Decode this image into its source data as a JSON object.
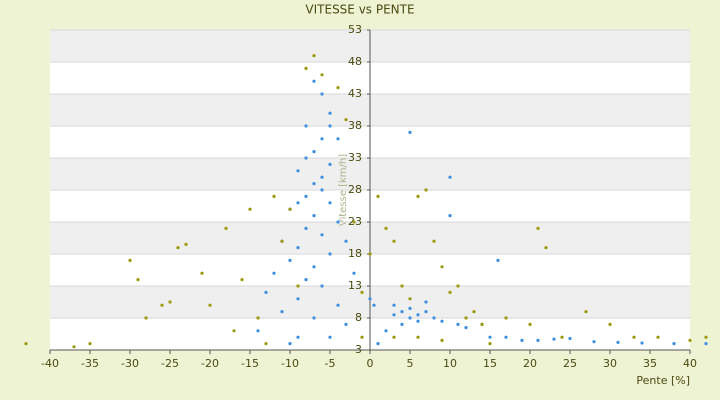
{
  "chart_data": {
    "type": "scatter",
    "title": "VITESSE vs PENTE",
    "x_label": "Pente [%]",
    "y_label": "Vitesse [km/h]",
    "xlim": [
      -40,
      40
    ],
    "xticks": [
      -40,
      -35,
      -30,
      -25,
      -20,
      -15,
      -10,
      -5,
      0,
      5,
      10,
      15,
      20,
      25,
      30,
      35,
      40
    ],
    "ylim": [
      3,
      53
    ],
    "yticks": [
      3,
      8,
      13,
      18,
      23,
      28,
      33,
      38,
      43,
      48,
      53
    ],
    "grid": true,
    "series": [
      {
        "color": "#3d8fe0",
        "x": [
          -7,
          -6,
          -5,
          -5,
          -6,
          -7,
          -8,
          -5,
          -6,
          -7,
          -6,
          -8,
          -9,
          -5,
          -10,
          -7,
          -4,
          -8,
          -6,
          -11,
          -9,
          -5,
          -10,
          -7,
          -12,
          -8,
          -6,
          -13,
          -9,
          -4,
          -11,
          -7,
          -3,
          -14,
          -9,
          -5,
          -10,
          -2,
          -3,
          -4,
          -8,
          -9,
          5,
          10,
          10,
          3,
          4,
          5,
          6,
          7,
          8,
          5,
          6,
          4,
          9,
          3,
          7,
          11,
          12,
          14,
          16,
          15,
          17,
          19,
          21,
          23,
          25,
          28,
          31,
          34,
          38,
          42,
          2,
          1,
          0.5,
          0
        ],
        "values": [
          45,
          43,
          40,
          38,
          36,
          34,
          33,
          32,
          30,
          29,
          28,
          27,
          26,
          26,
          25,
          24,
          23,
          22,
          21,
          20,
          19,
          18,
          17,
          16,
          15,
          14,
          13,
          12,
          11,
          10,
          9,
          8,
          7,
          6,
          5,
          5,
          4,
          15,
          20,
          36,
          38,
          31,
          37,
          30,
          24,
          10,
          9,
          9.5,
          8.5,
          9,
          8,
          8,
          7.5,
          7,
          7.5,
          8.5,
          10.5,
          7,
          6.5,
          7,
          17,
          5,
          5,
          4.5,
          4.5,
          4.7,
          4.8,
          4.3,
          4.2,
          4.1,
          4,
          4,
          6,
          4,
          10,
          11
        ]
      },
      {
        "color": "#9a9a10",
        "x": [
          -43,
          -37,
          -30,
          -29,
          -26,
          -24,
          -23,
          -21,
          -18,
          -16,
          -15,
          -14,
          -12,
          -11,
          -10,
          -9,
          -8,
          -7,
          -6,
          -4,
          -3,
          -2,
          -1,
          -13,
          -20,
          -28,
          -17,
          0,
          1,
          2,
          3,
          4,
          5,
          6,
          7,
          8,
          9,
          10,
          11,
          12,
          13,
          14,
          15,
          17,
          20,
          21,
          22,
          24,
          27,
          30,
          33,
          36,
          40,
          42,
          -25,
          -35,
          3,
          6,
          9,
          -1
        ],
        "values": [
          4,
          3.5,
          17,
          14,
          10,
          19,
          19.5,
          15,
          22,
          14,
          25,
          8,
          27,
          20,
          25,
          13,
          47,
          49,
          46,
          44,
          39,
          23,
          12,
          4,
          10,
          8,
          6,
          18,
          27,
          22,
          20,
          13,
          11,
          27,
          28,
          20,
          16,
          12,
          13,
          8,
          9,
          7,
          4,
          8,
          7,
          22,
          19,
          5,
          9,
          7,
          5,
          5,
          4.5,
          5,
          10.5,
          4,
          5,
          5,
          4.5,
          5
        ]
      }
    ]
  }
}
